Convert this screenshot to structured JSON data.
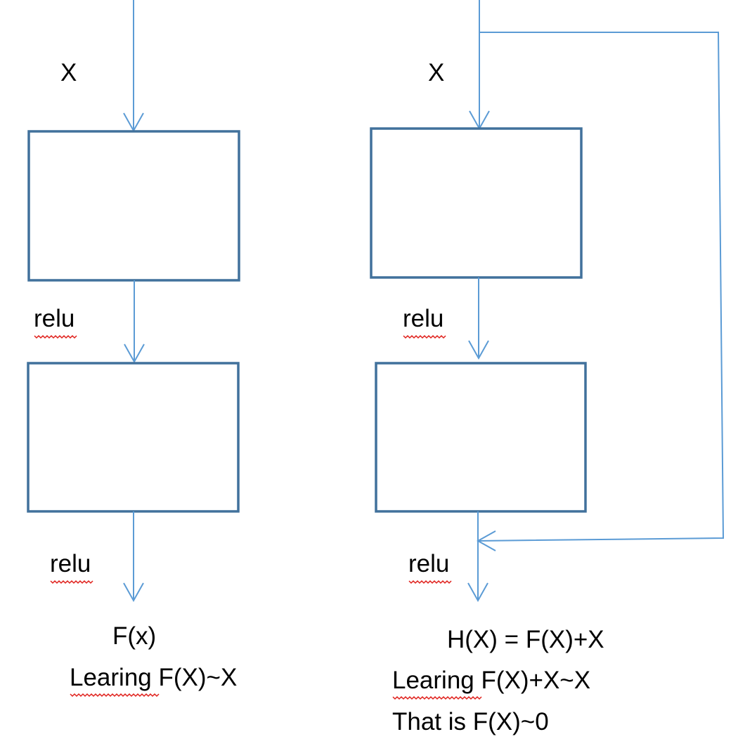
{
  "left": {
    "input_label": "X",
    "relu_label_1": "relu",
    "relu_label_2": "relu",
    "output_label": "F(x)",
    "caption": "Learing F(X)~X"
  },
  "right": {
    "input_label": "X",
    "relu_label_1": "relu",
    "relu_label_2": "relu",
    "output_label": "H(X) = F(X)+X",
    "caption_1": "Learing F(X)+X~X",
    "caption_2": "That is F(X)~0"
  },
  "colors": {
    "block_stroke": "#41719c",
    "arrow": "#5b9bd5",
    "spellcheck": "#e0201b"
  }
}
